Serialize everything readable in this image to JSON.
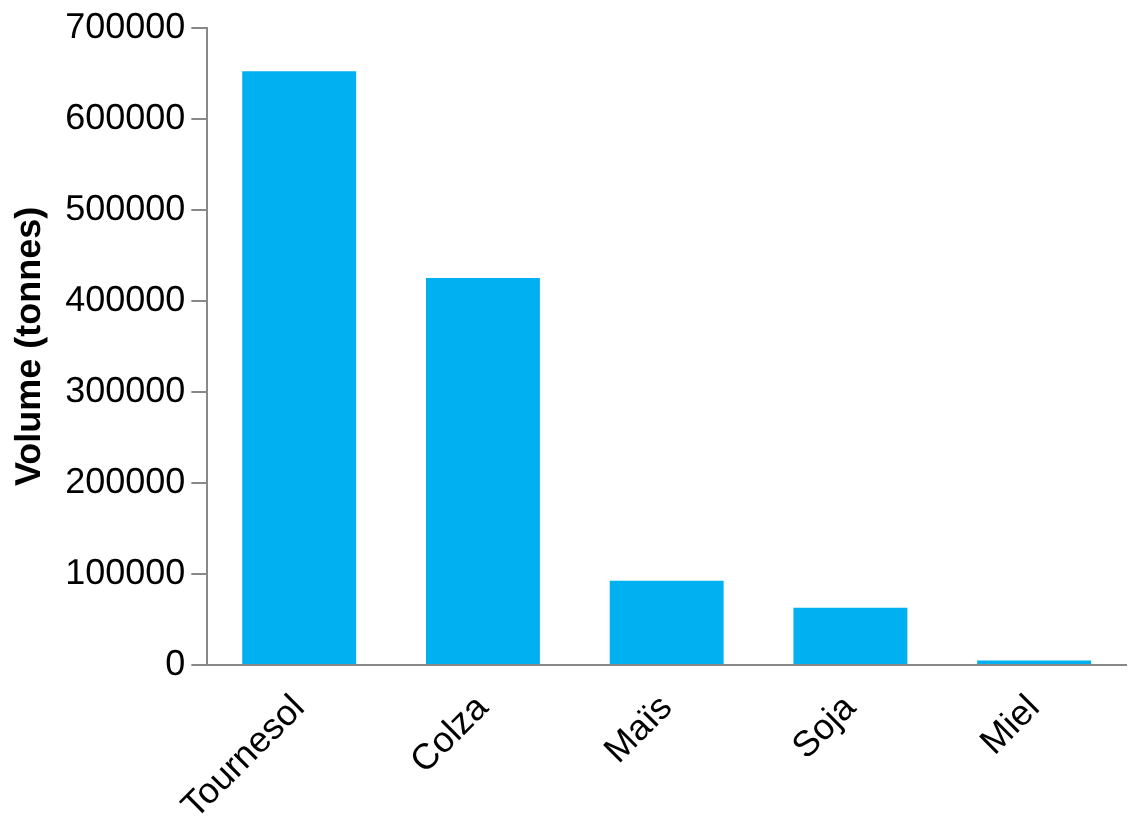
{
  "chart_data": {
    "type": "bar",
    "ylabel": "Volume (tonnes)",
    "categories": [
      "Tournesol",
      "Colza",
      "Maïs",
      "Soja",
      "Miel"
    ],
    "values": [
      652000,
      425000,
      92500,
      63000,
      5000
    ],
    "color": "#00b0f0",
    "ylim": [
      0,
      700000
    ],
    "yticks": [
      0,
      100000,
      200000,
      300000,
      400000,
      500000,
      600000,
      700000
    ],
    "grid": false
  }
}
